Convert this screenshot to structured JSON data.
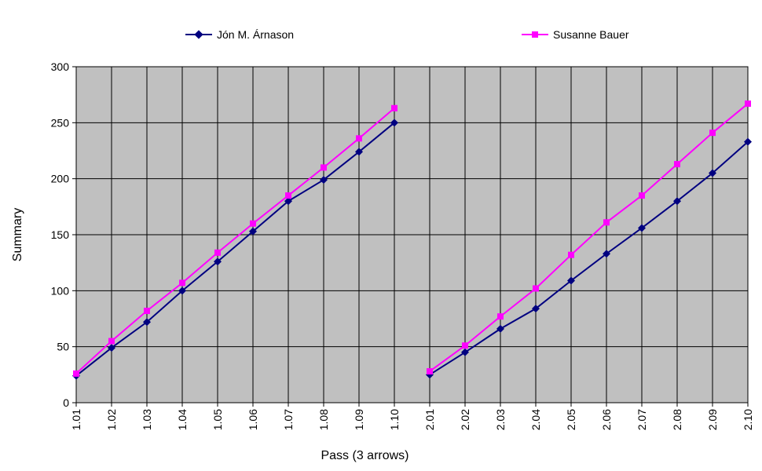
{
  "chart_data": {
    "type": "line",
    "xlabel": "Pass (3 arrows)",
    "ylabel": "Summary",
    "ylim": [
      0,
      300
    ],
    "yticks": [
      0,
      50,
      100,
      150,
      200,
      250,
      300
    ],
    "grid": true,
    "plot_background": "#c0c0c0",
    "legend_position": "top",
    "categories": [
      "1.01",
      "1.02",
      "1.03",
      "1.04",
      "1.05",
      "1.06",
      "1.07",
      "1.08",
      "1.09",
      "1.10",
      "2.01",
      "2.02",
      "2.03",
      "2.04",
      "2.05",
      "2.06",
      "2.07",
      "2.08",
      "2.09",
      "2.10"
    ],
    "series": [
      {
        "name": "Jón M. Árnason",
        "color": "#000080",
        "marker": "diamond",
        "segments": [
          [
            24,
            49,
            72,
            100,
            126,
            153,
            180,
            199,
            224,
            250
          ],
          [
            25,
            45,
            66,
            84,
            109,
            133,
            156,
            180,
            205,
            233
          ]
        ]
      },
      {
        "name": "Susanne Bauer",
        "color": "#ff00ff",
        "marker": "square",
        "segments": [
          [
            26,
            55,
            82,
            107,
            134,
            160,
            185,
            210,
            236,
            263
          ],
          [
            28,
            51,
            77,
            102,
            132,
            161,
            185,
            213,
            241,
            267
          ]
        ]
      }
    ]
  }
}
